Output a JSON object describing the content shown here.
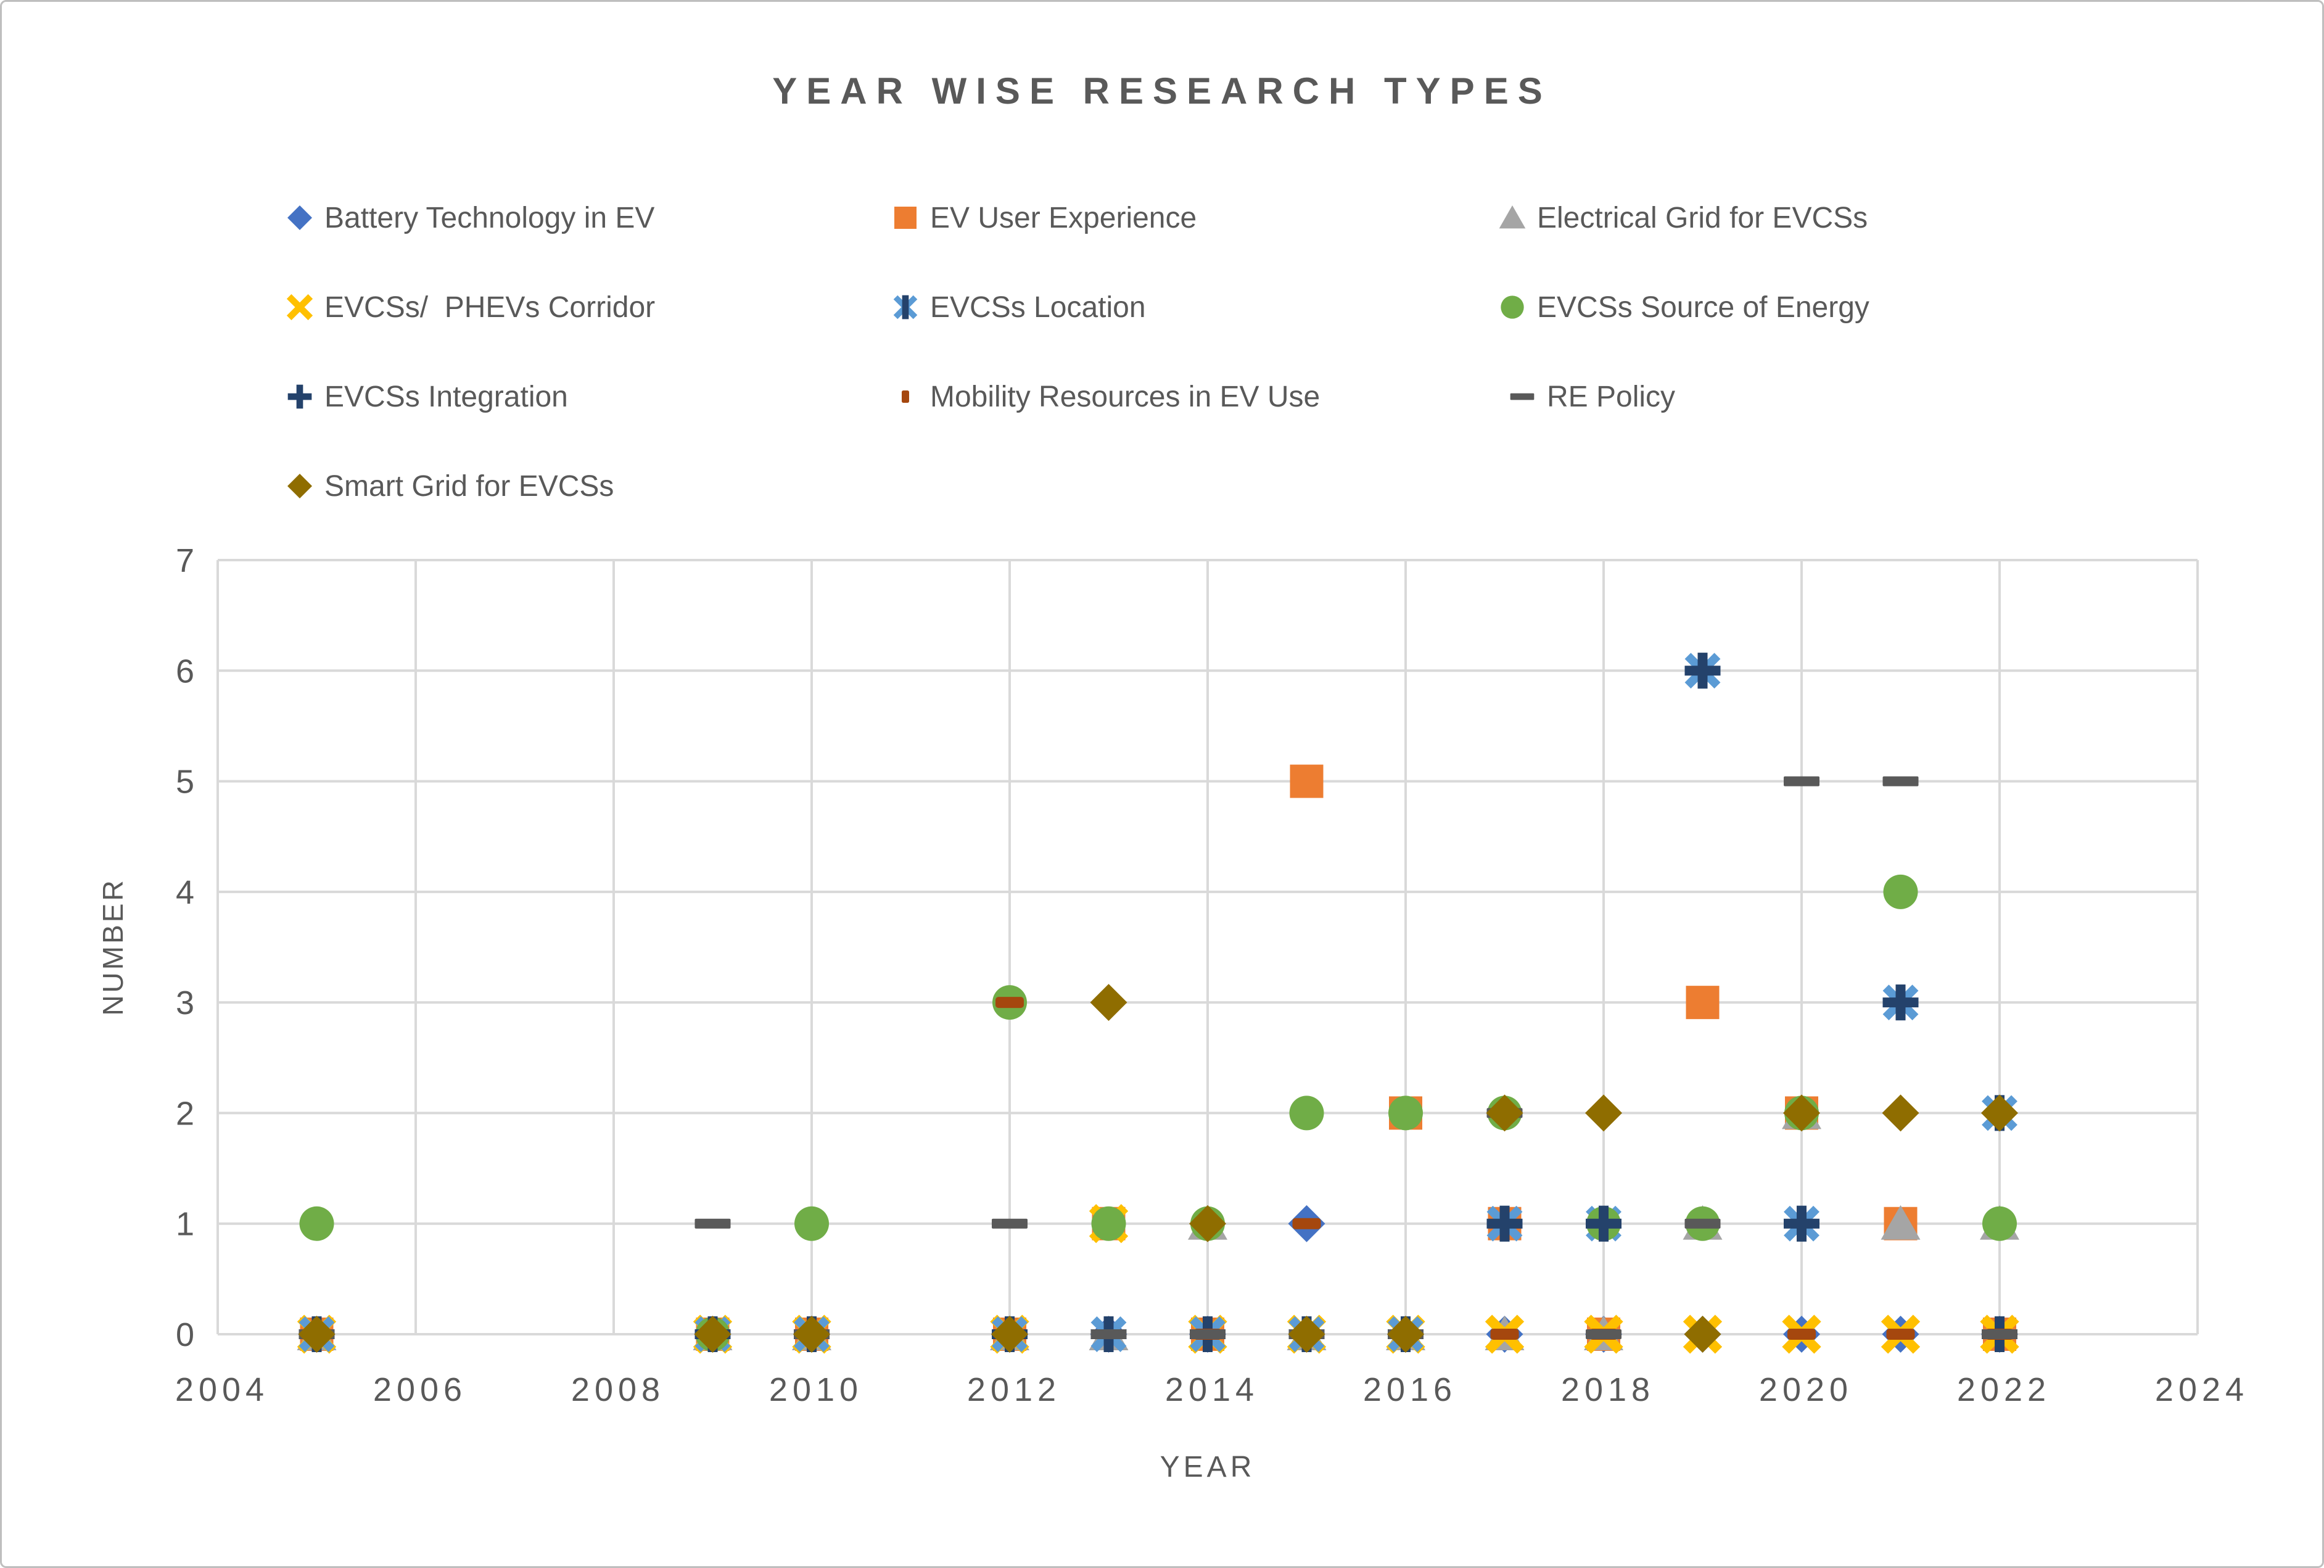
{
  "title": "YEAR WISE RESEARCH TYPES",
  "colors": {
    "text": "#595959",
    "gridline": "#D9D9D9",
    "frame": "#BFBFBF"
  },
  "legend": {
    "items": [
      {
        "label": "Battery Technology in EV"
      },
      {
        "label": "EV User Experience"
      },
      {
        "label": "Electrical Grid for EVCSs"
      },
      {
        "label": "EVCSs/  PHEVs Corridor"
      },
      {
        "label": "EVCSs Location"
      },
      {
        "label": "EVCSs Source of Energy"
      },
      {
        "label": "EVCSs Integration"
      },
      {
        "label": "Mobility Resources in EV Use"
      },
      {
        "label": "RE Policy"
      },
      {
        "label": "Smart Grid for EVCSs"
      }
    ]
  },
  "chart_data": {
    "type": "scatter",
    "title": "YEAR WISE RESEARCH TYPES",
    "xlabel": "YEAR",
    "ylabel": "NUMBER",
    "x_axis": {
      "min": 2004,
      "max": 2024,
      "tick_step": 2,
      "ticks": [
        2004,
        2006,
        2008,
        2010,
        2012,
        2014,
        2016,
        2018,
        2020,
        2022,
        2024
      ]
    },
    "y_axis": {
      "min": 0,
      "max": 7,
      "tick_step": 1,
      "ticks": [
        0,
        1,
        2,
        3,
        4,
        5,
        6,
        7
      ]
    },
    "grid": true,
    "legend_position": "top",
    "series": [
      {
        "name": "Battery Technology in EV",
        "marker": "diamond",
        "color": "#4472C4",
        "points": [
          [
            2005,
            0
          ],
          [
            2009,
            0
          ],
          [
            2010,
            0
          ],
          [
            2012,
            0
          ],
          [
            2013,
            0
          ],
          [
            2014,
            0
          ],
          [
            2015,
            1
          ],
          [
            2016,
            0
          ],
          [
            2017,
            0
          ],
          [
            2018,
            0
          ],
          [
            2019,
            0
          ],
          [
            2020,
            0
          ],
          [
            2021,
            0
          ],
          [
            2022,
            0
          ]
        ]
      },
      {
        "name": "EV User Experience",
        "marker": "square",
        "color": "#ED7D31",
        "points": [
          [
            2005,
            0
          ],
          [
            2009,
            0
          ],
          [
            2010,
            0
          ],
          [
            2012,
            0
          ],
          [
            2013,
            1
          ],
          [
            2014,
            0
          ],
          [
            2015,
            5
          ],
          [
            2016,
            2
          ],
          [
            2017,
            1
          ],
          [
            2018,
            0
          ],
          [
            2019,
            3
          ],
          [
            2020,
            2
          ],
          [
            2021,
            1
          ],
          [
            2022,
            0
          ]
        ]
      },
      {
        "name": "Electrical Grid for EVCSs",
        "marker": "triangle",
        "color": "#A5A5A5",
        "points": [
          [
            2005,
            0
          ],
          [
            2009,
            0
          ],
          [
            2010,
            0
          ],
          [
            2012,
            0
          ],
          [
            2013,
            0
          ],
          [
            2014,
            1
          ],
          [
            2015,
            0
          ],
          [
            2016,
            0
          ],
          [
            2017,
            0
          ],
          [
            2018,
            0
          ],
          [
            2019,
            1
          ],
          [
            2020,
            2
          ],
          [
            2021,
            1
          ],
          [
            2022,
            1
          ]
        ]
      },
      {
        "name": "EVCSs/  PHEVs Corridor",
        "marker": "xmark",
        "color": "#FFC000",
        "points": [
          [
            2005,
            0
          ],
          [
            2009,
            0
          ],
          [
            2010,
            0
          ],
          [
            2012,
            0
          ],
          [
            2013,
            1
          ],
          [
            2014,
            0
          ],
          [
            2015,
            0
          ],
          [
            2016,
            0
          ],
          [
            2017,
            0
          ],
          [
            2018,
            0
          ],
          [
            2019,
            0
          ],
          [
            2020,
            0
          ],
          [
            2021,
            0
          ],
          [
            2022,
            0
          ]
        ]
      },
      {
        "name": "EVCSs Location",
        "marker": "asterisk",
        "color": "#5B9BD5",
        "color2": "#24426B",
        "points": [
          [
            2005,
            0
          ],
          [
            2009,
            0
          ],
          [
            2010,
            0
          ],
          [
            2012,
            0
          ],
          [
            2013,
            0
          ],
          [
            2014,
            0
          ],
          [
            2015,
            0
          ],
          [
            2016,
            0
          ],
          [
            2017,
            1
          ],
          [
            2018,
            1
          ],
          [
            2019,
            6
          ],
          [
            2020,
            1
          ],
          [
            2021,
            3
          ],
          [
            2022,
            2
          ]
        ]
      },
      {
        "name": "EVCSs Source of Energy",
        "marker": "circle",
        "color": "#70AD47",
        "points": [
          [
            2005,
            1
          ],
          [
            2009,
            0
          ],
          [
            2010,
            1
          ],
          [
            2012,
            3
          ],
          [
            2013,
            1
          ],
          [
            2014,
            1
          ],
          [
            2015,
            2
          ],
          [
            2016,
            2
          ],
          [
            2017,
            2
          ],
          [
            2018,
            1
          ],
          [
            2019,
            1
          ],
          [
            2020,
            2
          ],
          [
            2021,
            4
          ],
          [
            2022,
            1
          ]
        ]
      },
      {
        "name": "EVCSs Integration",
        "marker": "plus",
        "color": "#24426B",
        "points": [
          [
            2005,
            0
          ],
          [
            2009,
            0
          ],
          [
            2010,
            0
          ],
          [
            2012,
            0
          ],
          [
            2013,
            0
          ],
          [
            2014,
            0
          ],
          [
            2015,
            0
          ],
          [
            2016,
            0
          ],
          [
            2017,
            1
          ],
          [
            2018,
            1
          ],
          [
            2019,
            6
          ],
          [
            2020,
            1
          ],
          [
            2021,
            3
          ],
          [
            2022,
            0
          ]
        ]
      },
      {
        "name": "Mobility Resources in EV Use",
        "marker": "dash-small",
        "color": "#A5470E",
        "points": [
          [
            2005,
            0
          ],
          [
            2009,
            0
          ],
          [
            2010,
            0
          ],
          [
            2012,
            3
          ],
          [
            2013,
            3
          ],
          [
            2014,
            0
          ],
          [
            2015,
            1
          ],
          [
            2016,
            0
          ],
          [
            2017,
            0
          ],
          [
            2018,
            0
          ],
          [
            2019,
            0
          ],
          [
            2020,
            0
          ],
          [
            2021,
            0
          ],
          [
            2022,
            0
          ]
        ]
      },
      {
        "name": "RE Policy",
        "marker": "dash",
        "color": "#595959",
        "points": [
          [
            2005,
            0
          ],
          [
            2009,
            1
          ],
          [
            2010,
            0
          ],
          [
            2012,
            1
          ],
          [
            2013,
            0
          ],
          [
            2014,
            0
          ],
          [
            2015,
            0
          ],
          [
            2016,
            0
          ],
          [
            2017,
            2
          ],
          [
            2018,
            0
          ],
          [
            2019,
            1
          ],
          [
            2020,
            5
          ],
          [
            2021,
            5
          ],
          [
            2022,
            0
          ]
        ]
      },
      {
        "name": "Smart Grid for EVCSs",
        "marker": "diamond",
        "color": "#8F6D00",
        "points": [
          [
            2005,
            0
          ],
          [
            2009,
            0
          ],
          [
            2010,
            0
          ],
          [
            2012,
            0
          ],
          [
            2013,
            3
          ],
          [
            2014,
            1
          ],
          [
            2015,
            0
          ],
          [
            2016,
            0
          ],
          [
            2017,
            2
          ],
          [
            2018,
            2
          ],
          [
            2019,
            0
          ],
          [
            2020,
            2
          ],
          [
            2021,
            2
          ],
          [
            2022,
            2
          ]
        ]
      }
    ]
  }
}
